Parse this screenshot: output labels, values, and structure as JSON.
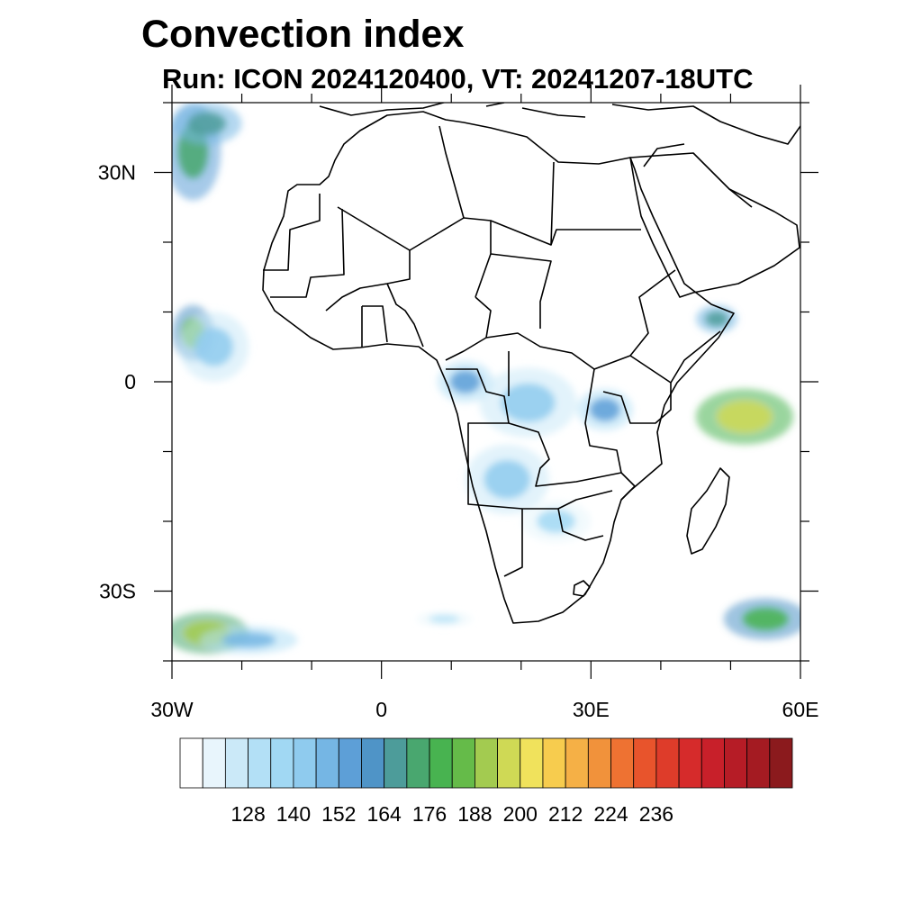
{
  "title": "Convection index",
  "subtitle": "Run: ICON 2024120400,  VT: 20241207-18UTC",
  "map": {
    "lon_range": [
      -30,
      60
    ],
    "lat_range": [
      -40,
      40
    ],
    "lon_ticks": [
      {
        "value": -30,
        "label": "30W"
      },
      {
        "value": 0,
        "label": "0"
      },
      {
        "value": 30,
        "label": "30E"
      },
      {
        "value": 60,
        "label": "60E"
      }
    ],
    "lat_ticks": [
      {
        "value": 30,
        "label": "30N"
      },
      {
        "value": 0,
        "label": "0"
      },
      {
        "value": -30,
        "label": "30S"
      }
    ],
    "border_color": "#000000",
    "field": [
      {
        "lon": -27,
        "lat": 33,
        "rx": 4,
        "ry": 7,
        "level": 170
      },
      {
        "lon": -25,
        "lat": 37,
        "rx": 5,
        "ry": 3,
        "level": 165
      },
      {
        "lon": -27,
        "lat": 7,
        "rx": 3,
        "ry": 4,
        "level": 180
      },
      {
        "lon": -24,
        "lat": 5,
        "rx": 5,
        "ry": 5,
        "level": 140
      },
      {
        "lon": -25,
        "lat": -36,
        "rx": 6,
        "ry": 3,
        "level": 190
      },
      {
        "lon": -19,
        "lat": -37,
        "rx": 7,
        "ry": 2,
        "level": 145
      },
      {
        "lon": 52,
        "lat": -5,
        "rx": 7,
        "ry": 4,
        "level": 195
      },
      {
        "lon": 55,
        "lat": -34,
        "rx": 6,
        "ry": 3,
        "level": 175
      },
      {
        "lon": 48,
        "lat": 9,
        "rx": 3,
        "ry": 2,
        "level": 165
      },
      {
        "lon": 12,
        "lat": 0,
        "rx": 4,
        "ry": 3,
        "level": 150
      },
      {
        "lon": 21,
        "lat": -3,
        "rx": 7,
        "ry": 5,
        "level": 140
      },
      {
        "lon": 32,
        "lat": -4,
        "rx": 4,
        "ry": 3,
        "level": 150
      },
      {
        "lon": 18,
        "lat": -14,
        "rx": 6,
        "ry": 5,
        "level": 140
      },
      {
        "lon": 25,
        "lat": -20,
        "rx": 5,
        "ry": 3,
        "level": 135
      },
      {
        "lon": 9,
        "lat": -34,
        "rx": 4,
        "ry": 1,
        "level": 130
      }
    ]
  },
  "colorbar": {
    "colors": [
      "#ffffff",
      "#e8f5fc",
      "#cbe9f8",
      "#b3e0f6",
      "#a1d8f3",
      "#8fcbee",
      "#75b6e4",
      "#5d9fd7",
      "#4f94c7",
      "#4d9c9a",
      "#49a76f",
      "#48b350",
      "#65bb49",
      "#a3cb50",
      "#cfd955",
      "#f0e25c",
      "#f7cc4e",
      "#f5b046",
      "#f1923b",
      "#ee7232",
      "#e8542c",
      "#de3c2a",
      "#d62b2b",
      "#c8202a",
      "#b61c26",
      "#a41b22",
      "#8b1a1d"
    ],
    "labels": [
      "128",
      "140",
      "152",
      "164",
      "176",
      "188",
      "200",
      "212",
      "224",
      "236"
    ]
  }
}
